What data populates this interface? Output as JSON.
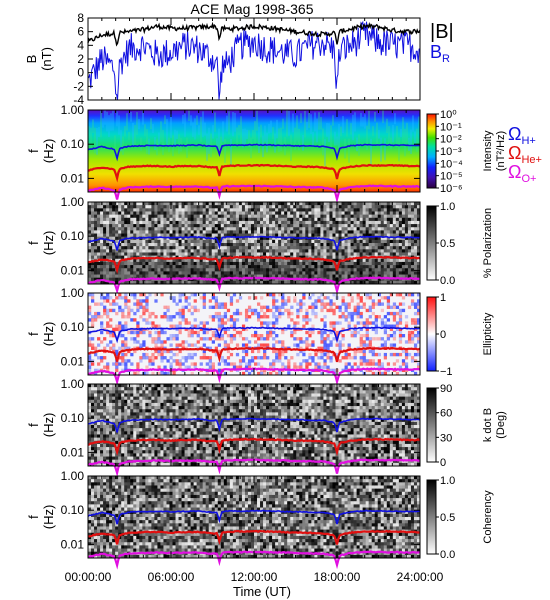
{
  "title": "ACE Mag 1998-365",
  "x_axis": {
    "label": "Time (UT)",
    "ticks": [
      "00:00:00",
      "06:00:00",
      "12:00:00",
      "18:00:00",
      "24:00:00"
    ]
  },
  "legend": {
    "top": [
      {
        "label": "|B|",
        "color": "#000000"
      },
      {
        "label": "B",
        "sub": "R",
        "color": "#1010e0"
      }
    ],
    "gyro": [
      {
        "label": "Ω",
        "sub": "H+",
        "color": "#1010e0"
      },
      {
        "label": "Ω",
        "sub": "He+",
        "color": "#e01010"
      },
      {
        "label": "Ω",
        "sub": "O+",
        "color": "#e010e0"
      }
    ]
  },
  "panels": [
    {
      "id": "b",
      "ylabel": "B",
      "yunit": "(nT)",
      "yticks": [
        "8",
        "6",
        "4",
        "2",
        "0",
        "-2",
        "-4"
      ],
      "style": "lines"
    },
    {
      "id": "intensity",
      "ylabel": "f",
      "yunit": "(Hz)",
      "yticks": [
        "1.00",
        "0.10",
        "0.01"
      ],
      "style": "rainbow",
      "colorbar": {
        "label": "Intensity",
        "unit": "(nT²/Hz)",
        "ticks": [
          "10⁰",
          "10⁻¹",
          "10⁻²",
          "10⁻³",
          "10⁻⁴",
          "10⁻⁵",
          "10⁻⁶"
        ]
      }
    },
    {
      "id": "polarization",
      "ylabel": "f",
      "yunit": "(Hz)",
      "yticks": [
        "1.00",
        "0.10",
        "0.01"
      ],
      "style": "gray",
      "colorbar": {
        "label": "% Polarization",
        "unit": "",
        "ticks": [
          "1.0",
          "0.5",
          "0.0"
        ]
      }
    },
    {
      "id": "ellipticity",
      "ylabel": "f",
      "yunit": "(Hz)",
      "yticks": [
        "1.00",
        "0.10",
        "0.01"
      ],
      "style": "bwr",
      "colorbar": {
        "label": "Ellipticity",
        "unit": "",
        "ticks": [
          "1",
          "0",
          "−1"
        ]
      }
    },
    {
      "id": "kdotb",
      "ylabel": "f",
      "yunit": "(Hz)",
      "yticks": [
        "1.00",
        "0.10",
        "0.01"
      ],
      "style": "gray",
      "colorbar": {
        "label": "k dot B",
        "unit": "(Deg)",
        "ticks": [
          "90",
          "60",
          "30",
          "0"
        ]
      }
    },
    {
      "id": "coherency",
      "ylabel": "f",
      "yunit": "(Hz)",
      "yticks": [
        "1.00",
        "0.10",
        "0.01"
      ],
      "style": "gray",
      "colorbar": {
        "label": "Coherency",
        "unit": "",
        "ticks": [
          "1.0",
          "0.5",
          "0.0"
        ]
      }
    }
  ],
  "chart_data": {
    "type": "heatmap",
    "title": "ACE Mag 1998-365",
    "xlabel": "Time (UT)",
    "x_hours": [
      0,
      1,
      2,
      3,
      4,
      5,
      6,
      7,
      8,
      9,
      10,
      11,
      12,
      13,
      14,
      15,
      16,
      17,
      18,
      19,
      20,
      21,
      22,
      23,
      24
    ],
    "B_total_nT": [
      4.5,
      5.5,
      5.8,
      6.0,
      6.3,
      6.8,
      6.5,
      6.5,
      6.6,
      6.8,
      6.4,
      6.5,
      6.8,
      6.6,
      6.3,
      6.0,
      5.8,
      5.6,
      5.9,
      6.4,
      6.8,
      6.7,
      6.2,
      6.0,
      6.1
    ],
    "B_R_nT": [
      -1.5,
      2.0,
      0.5,
      3.5,
      4.0,
      2.5,
      3.0,
      4.0,
      3.5,
      2.0,
      1.0,
      4.0,
      4.5,
      3.5,
      3.0,
      2.5,
      4.0,
      4.5,
      3.0,
      4.0,
      5.5,
      4.5,
      4.0,
      4.0,
      3.5
    ],
    "B_ylim": [
      -4,
      8
    ],
    "f_ylim_Hz": [
      0.004,
      1.0
    ],
    "f_scale": "log",
    "gyro_H_Hz": [
      0.068,
      0.085,
      0.07,
      0.088,
      0.09,
      0.092,
      0.09,
      0.092,
      0.094,
      0.085,
      0.094,
      0.094,
      0.096,
      0.095,
      0.092,
      0.09,
      0.088,
      0.086,
      0.072,
      0.09,
      0.096,
      0.096,
      0.094,
      0.092,
      0.092
    ],
    "gyro_He_Hz": [
      0.017,
      0.021,
      0.018,
      0.022,
      0.023,
      0.023,
      0.022,
      0.023,
      0.023,
      0.021,
      0.023,
      0.024,
      0.024,
      0.024,
      0.023,
      0.022,
      0.022,
      0.021,
      0.018,
      0.022,
      0.024,
      0.024,
      0.024,
      0.023,
      0.023
    ],
    "gyro_O_Hz": [
      0.0043,
      0.0053,
      0.0044,
      0.0055,
      0.0056,
      0.0058,
      0.0056,
      0.0058,
      0.0058,
      0.0053,
      0.0059,
      0.0059,
      0.006,
      0.0059,
      0.0058,
      0.0056,
      0.0055,
      0.0054,
      0.0045,
      0.0056,
      0.006,
      0.006,
      0.0059,
      0.0058,
      0.0058
    ],
    "dips_hours": [
      2.1,
      9.5,
      18.0
    ]
  }
}
